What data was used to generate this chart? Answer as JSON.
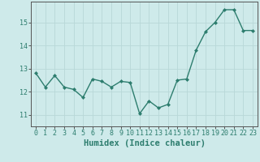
{
  "x": [
    0,
    1,
    2,
    3,
    4,
    5,
    6,
    7,
    8,
    9,
    10,
    11,
    12,
    13,
    14,
    15,
    16,
    17,
    18,
    19,
    20,
    21,
    22,
    23
  ],
  "y": [
    12.8,
    12.2,
    12.7,
    12.2,
    12.1,
    11.75,
    12.55,
    12.45,
    12.2,
    12.45,
    12.4,
    11.05,
    11.6,
    11.3,
    11.45,
    12.5,
    12.55,
    13.8,
    14.6,
    15.0,
    15.55,
    15.55,
    14.65,
    14.65
  ],
  "line_color": "#2d7d6e",
  "marker": "D",
  "markersize": 2,
  "linewidth": 1.0,
  "bg_color": "#ceeaea",
  "grid_color": "#b8d8d8",
  "xlabel": "Humidex (Indice chaleur)",
  "xlabel_fontsize": 7.5,
  "yticks": [
    11,
    12,
    13,
    14,
    15
  ],
  "xticks": [
    0,
    1,
    2,
    3,
    4,
    5,
    6,
    7,
    8,
    9,
    10,
    11,
    12,
    13,
    14,
    15,
    16,
    17,
    18,
    19,
    20,
    21,
    22,
    23
  ],
  "ylim": [
    10.5,
    15.9
  ],
  "xlim": [
    -0.5,
    23.5
  ],
  "tick_color": "#2d7d6e",
  "tick_fontsize": 6,
  "axis_color": "#555555"
}
